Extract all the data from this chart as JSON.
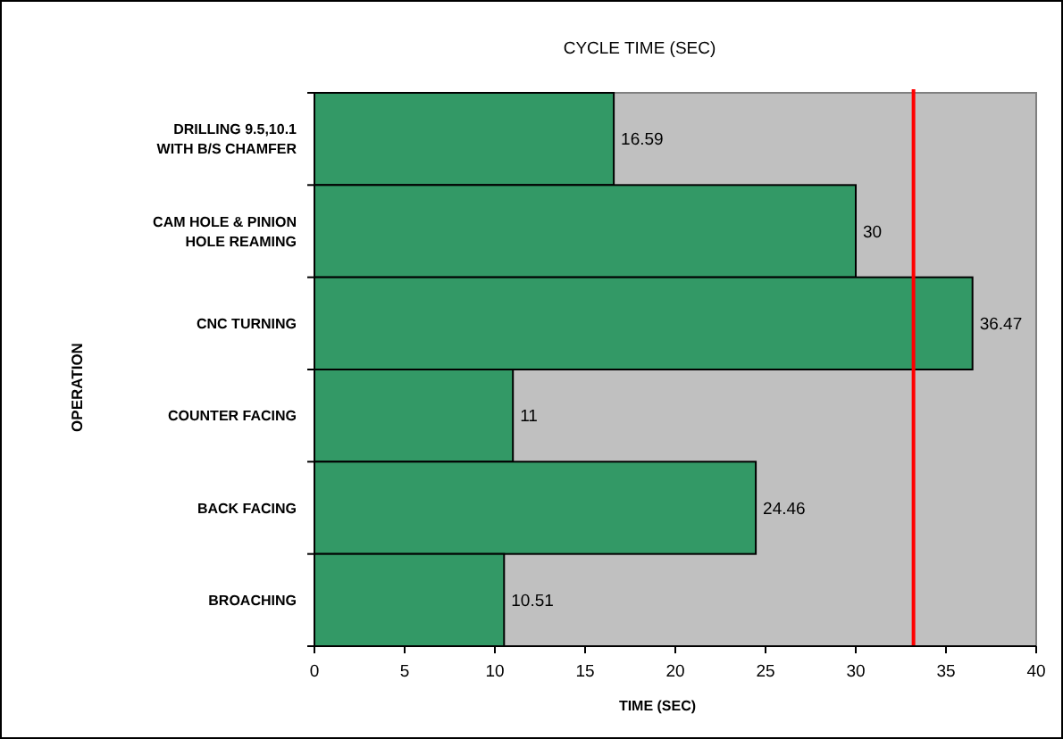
{
  "chart_data": {
    "type": "bar",
    "orientation": "horizontal",
    "title": "CYCLE TIME (SEC)",
    "xlabel": "TIME (SEC)",
    "ylabel": "OPERATION",
    "categories": [
      "DRILLING 9.5,10.1\nWITH B/S CHAMFER",
      "CAM HOLE & PINION\nHOLE REAMING",
      "CNC TURNING",
      "COUNTER FACING",
      "BACK FACING",
      "BROACHING"
    ],
    "values": [
      16.59,
      30,
      36.47,
      11,
      24.46,
      10.51
    ],
    "color": "#339966",
    "data_labels": true,
    "xlim": [
      0,
      40
    ],
    "xticks": [
      0,
      5,
      10,
      15,
      20,
      25,
      30,
      35,
      40
    ],
    "ref_lines": [
      {
        "axis": "x",
        "value": 33.2,
        "color": "#ff0000"
      }
    ]
  }
}
